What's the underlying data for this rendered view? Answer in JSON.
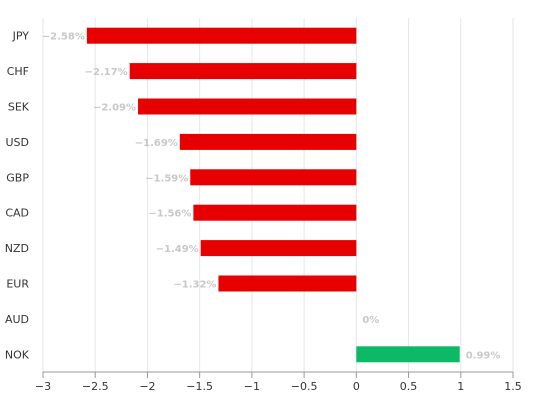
{
  "chart_data": {
    "type": "bar",
    "orientation": "horizontal",
    "categories": [
      "JPY",
      "CHF",
      "SEK",
      "USD",
      "GBP",
      "CAD",
      "NZD",
      "EUR",
      "AUD",
      "NOK"
    ],
    "values": [
      -2.58,
      -2.17,
      -2.09,
      -1.69,
      -1.59,
      -1.56,
      -1.49,
      -1.32,
      0,
      0.99
    ],
    "value_labels": [
      "−2.58%",
      "−2.17%",
      "−2.09%",
      "−1.69%",
      "−1.59%",
      "−1.56%",
      "−1.49%",
      "−1.32%",
      "0%",
      "0.99%"
    ],
    "xticks": [
      -3,
      -2.5,
      -2,
      -1.5,
      -1,
      -0.5,
      0,
      0.5,
      1,
      1.5
    ],
    "xtick_labels": [
      "−3",
      "−2.5",
      "−2",
      "−1.5",
      "−1",
      "−0.5",
      "0",
      "0.5",
      "1",
      "1.5"
    ],
    "xlim": [
      -3,
      1.5
    ],
    "grid": true,
    "colors": {
      "negative": "#e60000",
      "positive": "#0db866",
      "grid": "#e6e6e6",
      "value_label": "#c8c8c8"
    }
  }
}
